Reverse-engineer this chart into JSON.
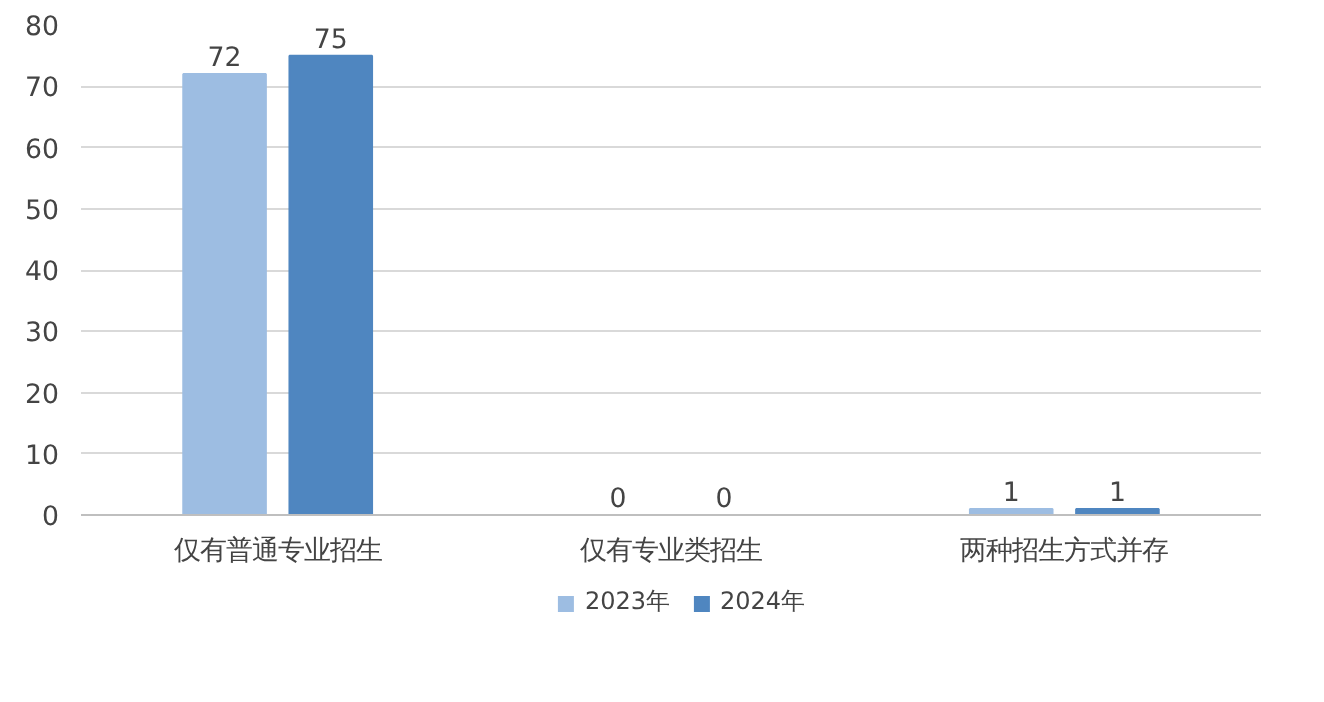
{
  "chart_data": {
    "type": "bar",
    "categories": [
      "仅有普通专业招生",
      "仅有专业类招生",
      "两种招生方式并存"
    ],
    "series": [
      {
        "name": "2023年",
        "color": "#9dbde2",
        "values": [
          72,
          0,
          1
        ]
      },
      {
        "name": "2024年",
        "color": "#4f86c0",
        "values": [
          75,
          0,
          1
        ]
      }
    ],
    "ylim": [
      0,
      80
    ],
    "yticks": [
      0,
      10,
      20,
      30,
      40,
      50,
      60,
      70,
      80
    ],
    "grid": "y",
    "legend": "bottom",
    "data_labels": true
  }
}
